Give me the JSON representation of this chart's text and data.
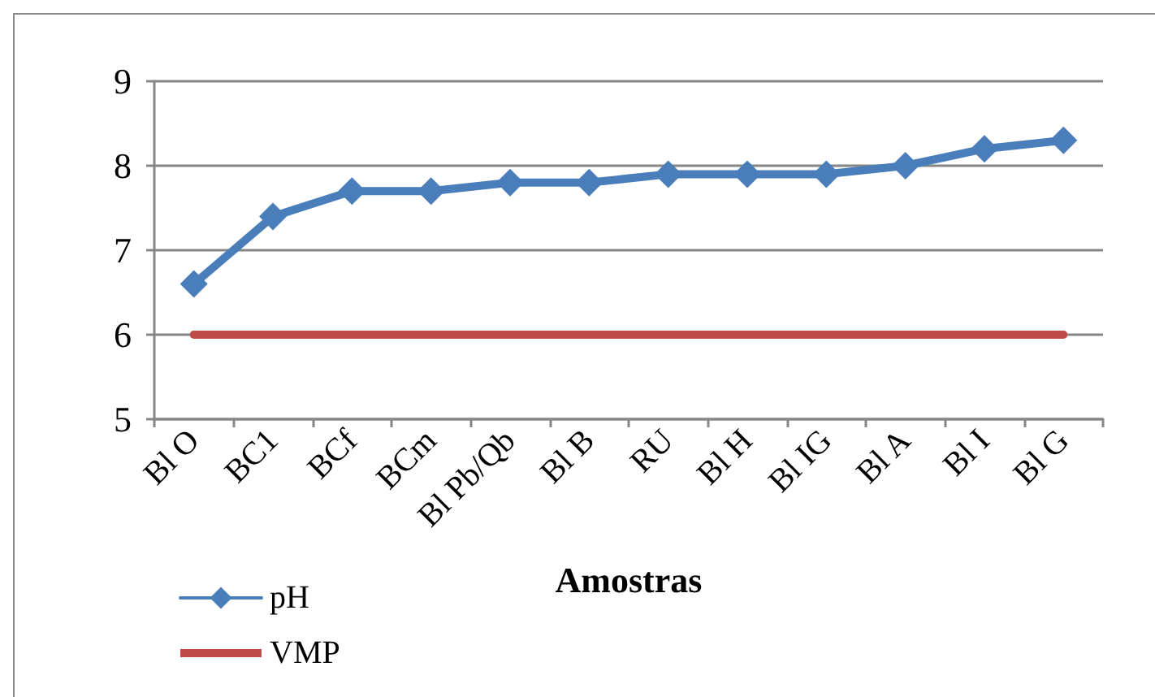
{
  "chart_data": {
    "type": "line",
    "xlabel": "Amostras",
    "categories": [
      "Bl O",
      "BC1",
      "BCf",
      "BCm",
      "Bl Pb/Qb",
      "Bl B",
      "RU",
      "Bl H",
      "Bl IG",
      "Bl A",
      "Bl I",
      "Bl G"
    ],
    "series": [
      {
        "name": "pH",
        "color": "#4a7ebb",
        "marker": "diamond",
        "values": [
          6.6,
          7.4,
          7.7,
          7.7,
          7.8,
          7.8,
          7.9,
          7.9,
          7.9,
          8.0,
          8.2,
          8.3
        ]
      },
      {
        "name": "VMP",
        "color": "#be4b48",
        "marker": "none",
        "values": [
          6,
          6,
          6,
          6,
          6,
          6,
          6,
          6,
          6,
          6,
          6,
          6
        ]
      }
    ],
    "ylim": [
      5,
      9
    ],
    "yticks": [
      5,
      6,
      7,
      8,
      9
    ],
    "grid": "y",
    "legend": "bottom left",
    "line_style": "solid"
  }
}
